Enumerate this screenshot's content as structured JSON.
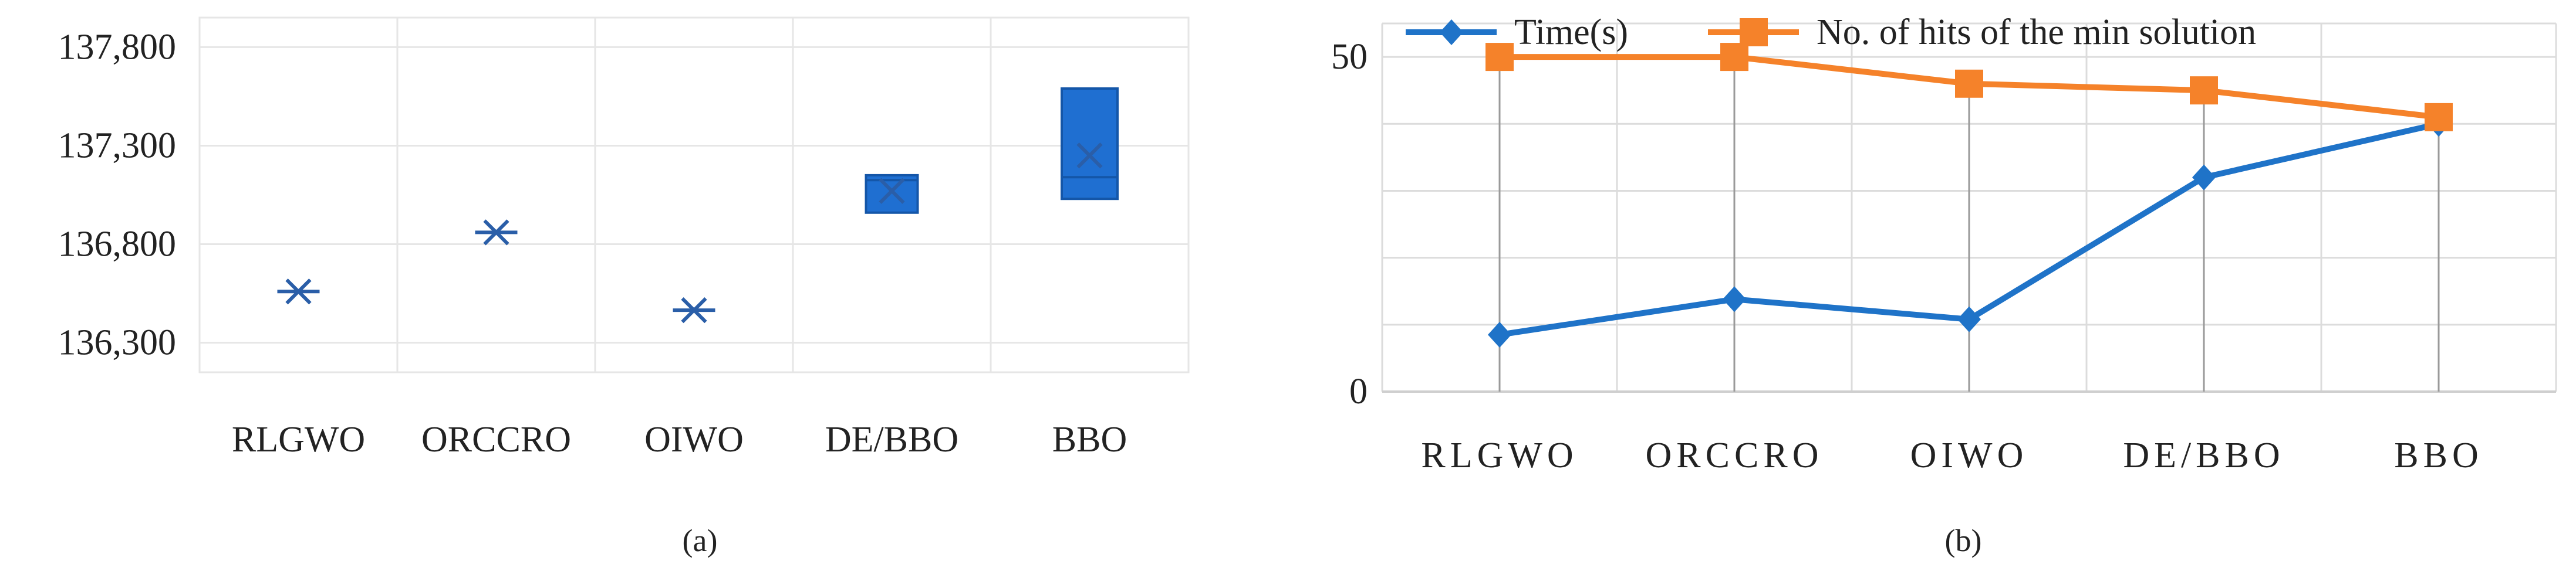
{
  "chart_data": [
    {
      "type": "box",
      "panel_label": "(a)",
      "categories": [
        "RLGWO",
        "ORCCRO",
        "OIWO",
        "DE/BBO",
        "BBO"
      ],
      "ylim": [
        136150,
        137950
      ],
      "yticks": [
        136300,
        136800,
        137300,
        137800
      ],
      "ytick_labels": [
        "136,300",
        "136,800",
        "137,300",
        "137,800"
      ],
      "boxes": [
        {
          "name": "RLGWO",
          "q1": null,
          "median": null,
          "q3": null,
          "mean": 136560
        },
        {
          "name": "ORCCRO",
          "q1": null,
          "median": null,
          "q3": null,
          "mean": 136860
        },
        {
          "name": "OIWO",
          "q1": null,
          "median": null,
          "q3": null,
          "mean": 136465
        },
        {
          "name": "DE/BBO",
          "q1": 136960,
          "median": 137125,
          "q3": 137150,
          "mean": 137070
        },
        {
          "name": "BBO",
          "q1": 137030,
          "median": 137140,
          "q3": 137590,
          "mean": 137250
        }
      ],
      "grid": true,
      "colors": {
        "box_fill": "#1f6fd1",
        "box_stroke": "#1456a8",
        "marker": "#2a5ea8",
        "grid": "#e6e6e6"
      }
    },
    {
      "type": "line",
      "panel_label": "(b)",
      "categories": [
        "RLGWO",
        "ORCCRO",
        "OIWO",
        "DE/BBO",
        "BBO"
      ],
      "ylim": [
        0,
        55
      ],
      "yticks": [
        0,
        50
      ],
      "series": [
        {
          "name": "Time(s)",
          "values": [
            8.5,
            13.8,
            10.8,
            32.0,
            40.0
          ],
          "color": "#1f73c8",
          "marker": "diamond"
        },
        {
          "name": "No. of hits of the min solution",
          "values": [
            50,
            50,
            46,
            45,
            41
          ],
          "color": "#f5822a",
          "marker": "square"
        }
      ],
      "legend_position": "top",
      "grid": true,
      "colors": {
        "grid": "#dcdcdc",
        "drop_line": "#9a9a9a"
      }
    }
  ]
}
